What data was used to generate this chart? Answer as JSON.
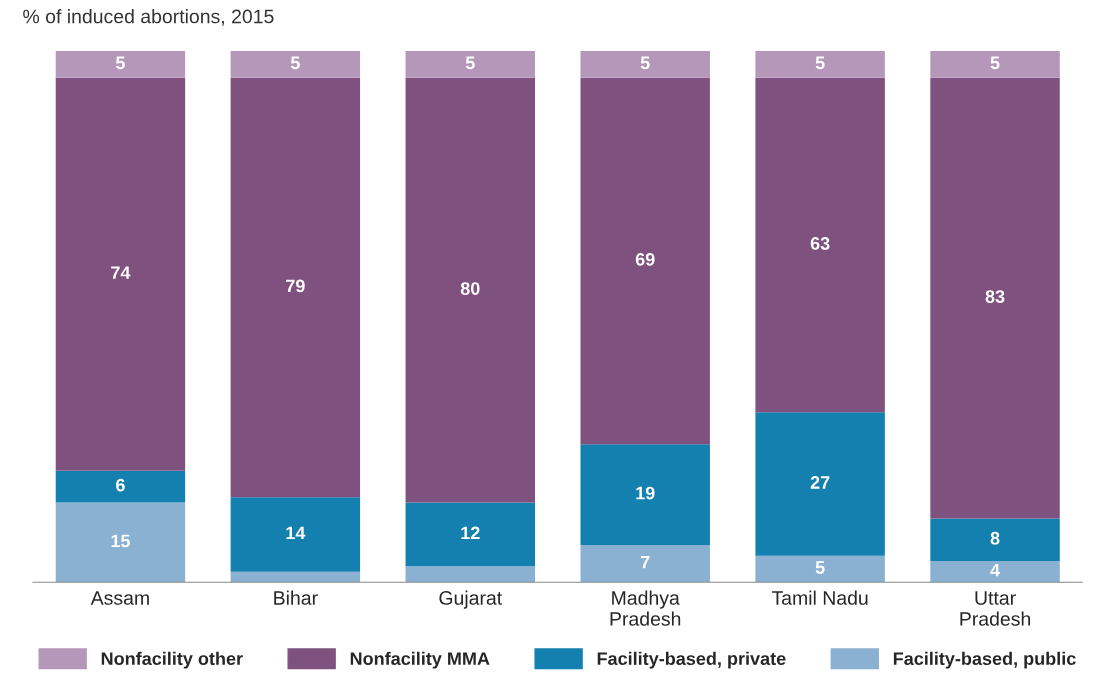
{
  "chart_data": {
    "type": "bar",
    "stacked": true,
    "ylabel": "% of induced abortions, 2015",
    "categories": [
      "Assam",
      "Bihar",
      "Gujarat",
      "Madhya\nPradesh",
      "Tamil Nadu",
      "Uttar\nPradesh"
    ],
    "series": [
      {
        "name": "Facility-based, public",
        "color": "#8ab0d2",
        "values": [
          15,
          2,
          3,
          7,
          5,
          4
        ],
        "value_labels": [
          "15",
          null,
          null,
          "7",
          "5",
          "4"
        ]
      },
      {
        "name": "Facility-based, private",
        "color": "#1380b0",
        "values": [
          6,
          14,
          12,
          19,
          27,
          8
        ],
        "value_labels": [
          "6",
          "14",
          "12",
          "19",
          "27",
          "8"
        ]
      },
      {
        "name": "Nonfacility MMA",
        "color": "#7f517f",
        "values": [
          74,
          79,
          80,
          69,
          63,
          83
        ],
        "value_labels": [
          "74",
          "79",
          "80",
          "69",
          "63",
          "83"
        ]
      },
      {
        "name": "Nonfacility other",
        "color": "#b597b9",
        "values": [
          5,
          5,
          5,
          5,
          5,
          5
        ],
        "value_labels": [
          "5",
          "5",
          "5",
          "5",
          "5",
          "5"
        ]
      }
    ],
    "ylim": [
      0,
      100
    ],
    "tick_labels": "x",
    "legend": "bottom",
    "grid": false
  }
}
